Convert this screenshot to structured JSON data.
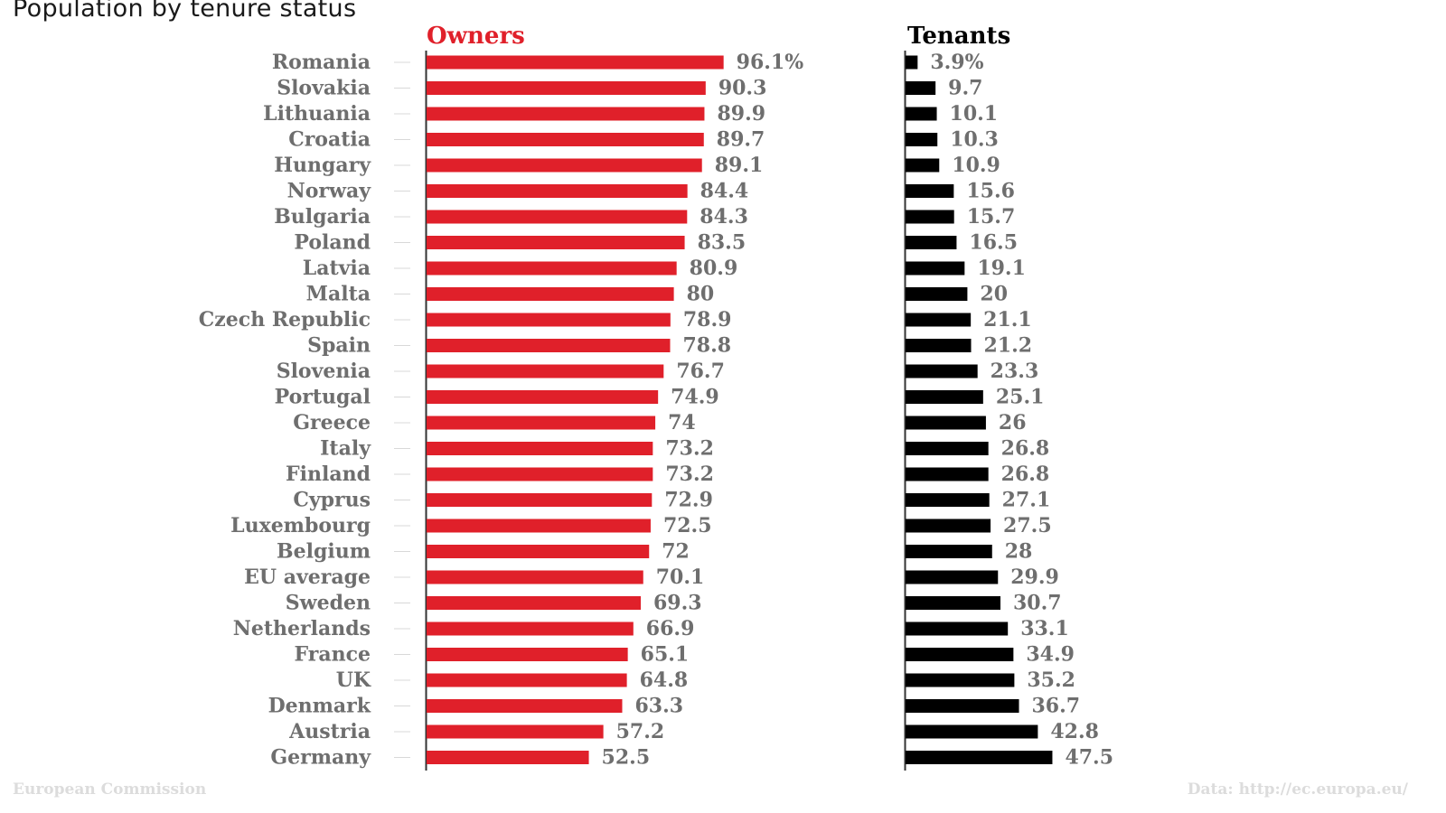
{
  "title": "Population by tenure status",
  "footer": {
    "source_left": "European Commission",
    "source_right": "Data: http://ec.europa.eu/"
  },
  "colors": {
    "owners": "#e0202a",
    "tenants": "#000000",
    "label": "#6e6e6e",
    "axis": "#333333"
  },
  "chart_data": {
    "type": "bar",
    "orientation": "horizontal",
    "title": "Population by tenure status",
    "categories": [
      "Romania",
      "Slovakia",
      "Lithuania",
      "Croatia",
      "Hungary",
      "Norway",
      "Bulgaria",
      "Poland",
      "Latvia",
      "Malta",
      "Czech Republic",
      "Spain",
      "Slovenia",
      "Portugal",
      "Greece",
      "Italy",
      "Finland",
      "Cyprus",
      "Luxembourg",
      "Belgium",
      "EU average",
      "Sweden",
      "Netherlands",
      "France",
      "UK",
      "Denmark",
      "Austria",
      "Germany"
    ],
    "series": [
      {
        "name": "Owners",
        "values": [
          96.1,
          90.3,
          89.9,
          89.7,
          89.1,
          84.4,
          84.3,
          83.5,
          80.9,
          80,
          78.9,
          78.8,
          76.7,
          74.9,
          74,
          73.2,
          73.2,
          72.9,
          72.5,
          72,
          70.1,
          69.3,
          66.9,
          65.1,
          64.8,
          63.3,
          57.2,
          52.5
        ],
        "labels": [
          "96.1%",
          "90.3",
          "89.9",
          "89.7",
          "89.1",
          "84.4",
          "84.3",
          "83.5",
          "80.9",
          "80",
          "78.9",
          "78.8",
          "76.7",
          "74.9",
          "74",
          "73.2",
          "73.2",
          "72.9",
          "72.5",
          "72",
          "70.1",
          "69.3",
          "66.9",
          "65.1",
          "64.8",
          "63.3",
          "57.2",
          "52.5"
        ]
      },
      {
        "name": "Tenants",
        "values": [
          3.9,
          9.7,
          10.1,
          10.3,
          10.9,
          15.6,
          15.7,
          16.5,
          19.1,
          20,
          21.1,
          21.2,
          23.3,
          25.1,
          26,
          26.8,
          26.8,
          27.1,
          27.5,
          28,
          29.9,
          30.7,
          33.1,
          34.9,
          35.2,
          36.7,
          42.8,
          47.5
        ],
        "labels": [
          "3.9%",
          "9.7",
          "10.1",
          "10.3",
          "10.9",
          "15.6",
          "15.7",
          "16.5",
          "19.1",
          "20",
          "21.1",
          "21.2",
          "23.3",
          "25.1",
          "26",
          "26.8",
          "26.8",
          "27.1",
          "27.5",
          "28",
          "29.9",
          "30.7",
          "33.1",
          "34.9",
          "35.2",
          "36.7",
          "42.8",
          "47.5"
        ]
      }
    ],
    "units": "percent of population",
    "xlim": [
      0,
      100
    ]
  }
}
